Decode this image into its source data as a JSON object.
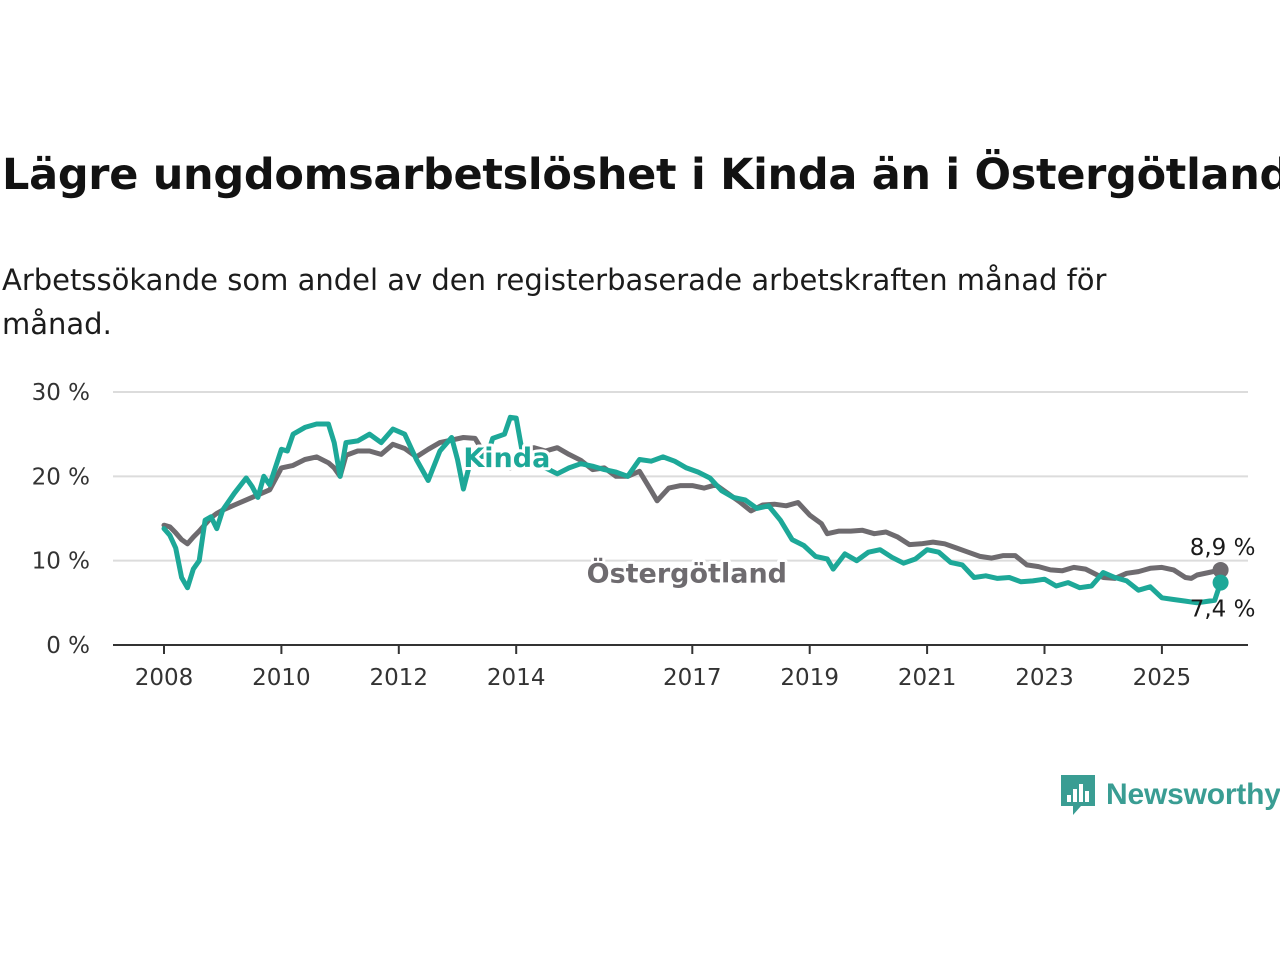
{
  "title": "Lägre ungdomsarbetslöshet i Kinda än i Östergötland",
  "subtitle": "Arbetssökande som andel av den registerbaserade arbetskraften månad för månad.",
  "brand": {
    "name": "Newsworthy",
    "icon": "newsworthy-logo-icon",
    "color": "#3a9d93"
  },
  "chart_data": {
    "type": "line",
    "title": "Lägre ungdomsarbetslöshet i Kinda än i Östergötland",
    "subtitle": "Arbetssökande som andel av den registerbaserade arbetskraften månad för månad.",
    "xlabel": "",
    "ylabel": "",
    "xlim": [
      2008.0,
      2026.5
    ],
    "ylim": [
      0,
      30
    ],
    "yticks": [
      0,
      10,
      20,
      30
    ],
    "ytick_labels": [
      "0 %",
      "10 %",
      "20 %",
      "30 %"
    ],
    "xticks": [
      2008,
      2010,
      2012,
      2014,
      2017,
      2019,
      2021,
      2023,
      2025
    ],
    "xtick_labels": [
      "2008",
      "2010",
      "2012",
      "2014",
      "2017",
      "2019",
      "2021",
      "2023",
      "2025"
    ],
    "grid": "horizontal",
    "legend": "none",
    "series": [
      {
        "name": "Östergötland",
        "color": "#6e6b6f",
        "end_label": "8,9 %",
        "points": [
          [
            2008.0,
            14.2
          ],
          [
            2008.1,
            14.0
          ],
          [
            2008.2,
            13.3
          ],
          [
            2008.3,
            12.5
          ],
          [
            2008.4,
            12.0
          ],
          [
            2008.5,
            12.8
          ],
          [
            2008.6,
            13.5
          ],
          [
            2008.7,
            14.3
          ],
          [
            2008.8,
            15.1
          ],
          [
            2008.9,
            15.6
          ],
          [
            2009.0,
            16.0
          ],
          [
            2009.2,
            16.6
          ],
          [
            2009.4,
            17.2
          ],
          [
            2009.6,
            17.8
          ],
          [
            2009.8,
            18.4
          ],
          [
            2010.0,
            21.0
          ],
          [
            2010.2,
            21.3
          ],
          [
            2010.4,
            22.0
          ],
          [
            2010.6,
            22.3
          ],
          [
            2010.8,
            21.6
          ],
          [
            2010.9,
            21.0
          ],
          [
            2011.0,
            20.0
          ],
          [
            2011.1,
            22.5
          ],
          [
            2011.3,
            23.0
          ],
          [
            2011.5,
            23.0
          ],
          [
            2011.7,
            22.6
          ],
          [
            2011.9,
            23.8
          ],
          [
            2012.1,
            23.3
          ],
          [
            2012.3,
            22.3
          ],
          [
            2012.5,
            23.2
          ],
          [
            2012.7,
            24.0
          ],
          [
            2012.9,
            24.3
          ],
          [
            2013.1,
            24.6
          ],
          [
            2013.3,
            24.5
          ],
          [
            2013.5,
            22.2
          ],
          [
            2013.7,
            22.0
          ],
          [
            2013.9,
            21.0
          ],
          [
            2014.1,
            22.8
          ],
          [
            2014.3,
            23.4
          ],
          [
            2014.5,
            23.0
          ],
          [
            2014.7,
            23.4
          ],
          [
            2014.9,
            22.6
          ],
          [
            2015.1,
            21.9
          ],
          [
            2015.3,
            20.8
          ],
          [
            2015.5,
            21.0
          ],
          [
            2015.7,
            20.0
          ],
          [
            2015.9,
            20.0
          ],
          [
            2016.1,
            20.6
          ],
          [
            2016.3,
            18.3
          ],
          [
            2016.4,
            17.1
          ],
          [
            2016.6,
            18.6
          ],
          [
            2016.8,
            18.9
          ],
          [
            2017.0,
            18.9
          ],
          [
            2017.2,
            18.6
          ],
          [
            2017.4,
            19.0
          ],
          [
            2017.6,
            18.0
          ],
          [
            2017.8,
            17.0
          ],
          [
            2018.0,
            15.9
          ],
          [
            2018.2,
            16.6
          ],
          [
            2018.4,
            16.7
          ],
          [
            2018.6,
            16.5
          ],
          [
            2018.8,
            16.9
          ],
          [
            2019.0,
            15.4
          ],
          [
            2019.2,
            14.4
          ],
          [
            2019.3,
            13.2
          ],
          [
            2019.5,
            13.5
          ],
          [
            2019.7,
            13.5
          ],
          [
            2019.9,
            13.6
          ],
          [
            2020.1,
            13.2
          ],
          [
            2020.3,
            13.4
          ],
          [
            2020.5,
            12.8
          ],
          [
            2020.7,
            11.9
          ],
          [
            2020.9,
            12.0
          ],
          [
            2021.1,
            12.2
          ],
          [
            2021.3,
            12.0
          ],
          [
            2021.5,
            11.5
          ],
          [
            2021.7,
            11.0
          ],
          [
            2021.9,
            10.5
          ],
          [
            2022.1,
            10.3
          ],
          [
            2022.3,
            10.6
          ],
          [
            2022.5,
            10.6
          ],
          [
            2022.7,
            9.5
          ],
          [
            2022.9,
            9.3
          ],
          [
            2023.1,
            8.9
          ],
          [
            2023.3,
            8.8
          ],
          [
            2023.5,
            9.2
          ],
          [
            2023.7,
            9.0
          ],
          [
            2023.9,
            8.3
          ],
          [
            2024.0,
            8.0
          ],
          [
            2024.2,
            7.9
          ],
          [
            2024.4,
            8.5
          ],
          [
            2024.6,
            8.7
          ],
          [
            2024.8,
            9.1
          ],
          [
            2025.0,
            9.2
          ],
          [
            2025.2,
            8.9
          ],
          [
            2025.4,
            8.0
          ],
          [
            2025.5,
            7.9
          ],
          [
            2025.6,
            8.3
          ],
          [
            2025.8,
            8.6
          ],
          [
            2026.0,
            8.9
          ]
        ]
      },
      {
        "name": "Kinda",
        "color": "#1da898",
        "end_label": "7,4 %",
        "points": [
          [
            2008.0,
            13.8
          ],
          [
            2008.1,
            13.0
          ],
          [
            2008.2,
            11.5
          ],
          [
            2008.3,
            8.0
          ],
          [
            2008.4,
            6.8
          ],
          [
            2008.5,
            9.0
          ],
          [
            2008.6,
            10.0
          ],
          [
            2008.7,
            14.8
          ],
          [
            2008.8,
            15.2
          ],
          [
            2008.9,
            13.8
          ],
          [
            2009.0,
            16.0
          ],
          [
            2009.2,
            18.0
          ],
          [
            2009.4,
            19.8
          ],
          [
            2009.5,
            18.8
          ],
          [
            2009.6,
            17.5
          ],
          [
            2009.7,
            20.0
          ],
          [
            2009.8,
            19.0
          ],
          [
            2010.0,
            23.2
          ],
          [
            2010.1,
            23.0
          ],
          [
            2010.2,
            25.0
          ],
          [
            2010.4,
            25.8
          ],
          [
            2010.6,
            26.2
          ],
          [
            2010.8,
            26.2
          ],
          [
            2010.9,
            24.0
          ],
          [
            2011.0,
            20.0
          ],
          [
            2011.1,
            24.0
          ],
          [
            2011.3,
            24.2
          ],
          [
            2011.5,
            25.0
          ],
          [
            2011.7,
            24.0
          ],
          [
            2011.9,
            25.6
          ],
          [
            2012.1,
            25.0
          ],
          [
            2012.3,
            22.0
          ],
          [
            2012.5,
            19.5
          ],
          [
            2012.7,
            23.0
          ],
          [
            2012.9,
            24.6
          ],
          [
            2013.0,
            22.0
          ],
          [
            2013.1,
            18.5
          ],
          [
            2013.2,
            21.2
          ],
          [
            2013.4,
            22.4
          ],
          [
            2013.5,
            22.3
          ],
          [
            2013.6,
            24.5
          ],
          [
            2013.8,
            25.0
          ],
          [
            2013.9,
            27.0
          ],
          [
            2014.0,
            26.9
          ],
          [
            2014.1,
            23.0
          ],
          [
            2014.3,
            22.0
          ],
          [
            2014.5,
            21.0
          ],
          [
            2014.7,
            20.3
          ],
          [
            2014.9,
            21.0
          ],
          [
            2015.1,
            21.5
          ],
          [
            2015.3,
            21.2
          ],
          [
            2015.5,
            20.8
          ],
          [
            2015.7,
            20.5
          ],
          [
            2015.9,
            20.0
          ],
          [
            2016.1,
            22.0
          ],
          [
            2016.3,
            21.8
          ],
          [
            2016.5,
            22.3
          ],
          [
            2016.7,
            21.8
          ],
          [
            2016.9,
            21.0
          ],
          [
            2017.1,
            20.5
          ],
          [
            2017.3,
            19.8
          ],
          [
            2017.5,
            18.3
          ],
          [
            2017.7,
            17.5
          ],
          [
            2017.9,
            17.2
          ],
          [
            2018.1,
            16.2
          ],
          [
            2018.3,
            16.5
          ],
          [
            2018.5,
            14.8
          ],
          [
            2018.7,
            12.5
          ],
          [
            2018.9,
            11.8
          ],
          [
            2019.1,
            10.5
          ],
          [
            2019.3,
            10.2
          ],
          [
            2019.4,
            9.0
          ],
          [
            2019.6,
            10.8
          ],
          [
            2019.8,
            10.0
          ],
          [
            2020.0,
            11.0
          ],
          [
            2020.2,
            11.3
          ],
          [
            2020.4,
            10.4
          ],
          [
            2020.6,
            9.7
          ],
          [
            2020.8,
            10.2
          ],
          [
            2021.0,
            11.3
          ],
          [
            2021.2,
            11.0
          ],
          [
            2021.4,
            9.8
          ],
          [
            2021.6,
            9.5
          ],
          [
            2021.8,
            8.0
          ],
          [
            2022.0,
            8.2
          ],
          [
            2022.2,
            7.9
          ],
          [
            2022.4,
            8.0
          ],
          [
            2022.6,
            7.5
          ],
          [
            2022.8,
            7.6
          ],
          [
            2023.0,
            7.8
          ],
          [
            2023.2,
            7.0
          ],
          [
            2023.4,
            7.4
          ],
          [
            2023.6,
            6.8
          ],
          [
            2023.8,
            7.0
          ],
          [
            2024.0,
            8.6
          ],
          [
            2024.2,
            8.0
          ],
          [
            2024.4,
            7.6
          ],
          [
            2024.6,
            6.5
          ],
          [
            2024.8,
            6.9
          ],
          [
            2025.0,
            5.6
          ],
          [
            2025.2,
            5.4
          ],
          [
            2025.4,
            5.2
          ],
          [
            2025.6,
            5.0
          ],
          [
            2025.8,
            5.2
          ],
          [
            2025.9,
            5.3
          ],
          [
            2026.0,
            7.4
          ]
        ]
      }
    ]
  }
}
